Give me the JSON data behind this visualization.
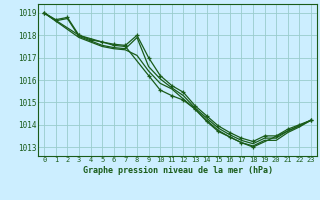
{
  "title": "Graphe pression niveau de la mer (hPa)",
  "background_color": "#cceeff",
  "grid_color": "#99cccc",
  "line_color": "#1a5c1a",
  "xlim": [
    -0.5,
    23.5
  ],
  "ylim": [
    1012.6,
    1019.4
  ],
  "yticks": [
    1013,
    1014,
    1015,
    1016,
    1017,
    1018,
    1019
  ],
  "xtick_labels": [
    "0",
    "1",
    "2",
    "3",
    "4",
    "5",
    "6",
    "7",
    "8",
    "9",
    "10",
    "11",
    "12",
    "13",
    "14",
    "15",
    "16",
    "17",
    "18",
    "19",
    "20",
    "21",
    "22",
    "23"
  ],
  "series": [
    {
      "x": [
        0,
        1,
        2,
        3,
        4,
        5,
        6,
        7,
        8,
        9,
        10,
        11,
        12,
        13,
        14,
        15,
        16,
        17,
        18,
        19,
        20,
        21,
        22,
        23
      ],
      "y": [
        1019.0,
        1018.7,
        1018.8,
        1018.0,
        1017.8,
        1017.7,
        1017.6,
        1017.55,
        1018.0,
        1017.0,
        1016.2,
        1015.75,
        1015.45,
        1014.85,
        1014.4,
        1013.95,
        1013.65,
        1013.4,
        1013.25,
        1013.5,
        1013.5,
        1013.8,
        1014.0,
        1014.2
      ],
      "has_markers": true
    },
    {
      "x": [
        0,
        3,
        4,
        5,
        6,
        7,
        8,
        9,
        10,
        11,
        12,
        13,
        14,
        15,
        16,
        17,
        18,
        19,
        20,
        21,
        22,
        23
      ],
      "y": [
        1019.0,
        1017.9,
        1017.7,
        1017.5,
        1017.4,
        1017.35,
        1017.1,
        1016.4,
        1015.85,
        1015.6,
        1015.15,
        1014.7,
        1014.2,
        1013.75,
        1013.45,
        1013.2,
        1013.05,
        1013.3,
        1013.3,
        1013.65,
        1013.9,
        1014.2
      ],
      "has_markers": false
    },
    {
      "x": [
        0,
        1,
        2,
        3,
        4,
        5,
        6,
        7,
        8,
        9,
        10,
        11,
        12,
        13,
        14,
        15,
        16,
        17,
        18,
        19,
        20,
        21,
        22,
        23
      ],
      "y": [
        1019.0,
        1018.65,
        1018.75,
        1017.95,
        1017.75,
        1017.55,
        1017.45,
        1017.4,
        1017.9,
        1016.6,
        1016.05,
        1015.65,
        1015.3,
        1014.75,
        1014.3,
        1013.85,
        1013.55,
        1013.3,
        1013.15,
        1013.4,
        1013.4,
        1013.72,
        1013.95,
        1014.2
      ],
      "has_markers": false
    },
    {
      "x": [
        0,
        3,
        6,
        7,
        9,
        10,
        11,
        12,
        13,
        14,
        15,
        16,
        17,
        18,
        23
      ],
      "y": [
        1019.0,
        1018.0,
        1017.55,
        1017.5,
        1016.2,
        1015.55,
        1015.3,
        1015.1,
        1014.7,
        1014.15,
        1013.7,
        1013.45,
        1013.2,
        1013.0,
        1014.2
      ],
      "has_markers": true
    }
  ]
}
